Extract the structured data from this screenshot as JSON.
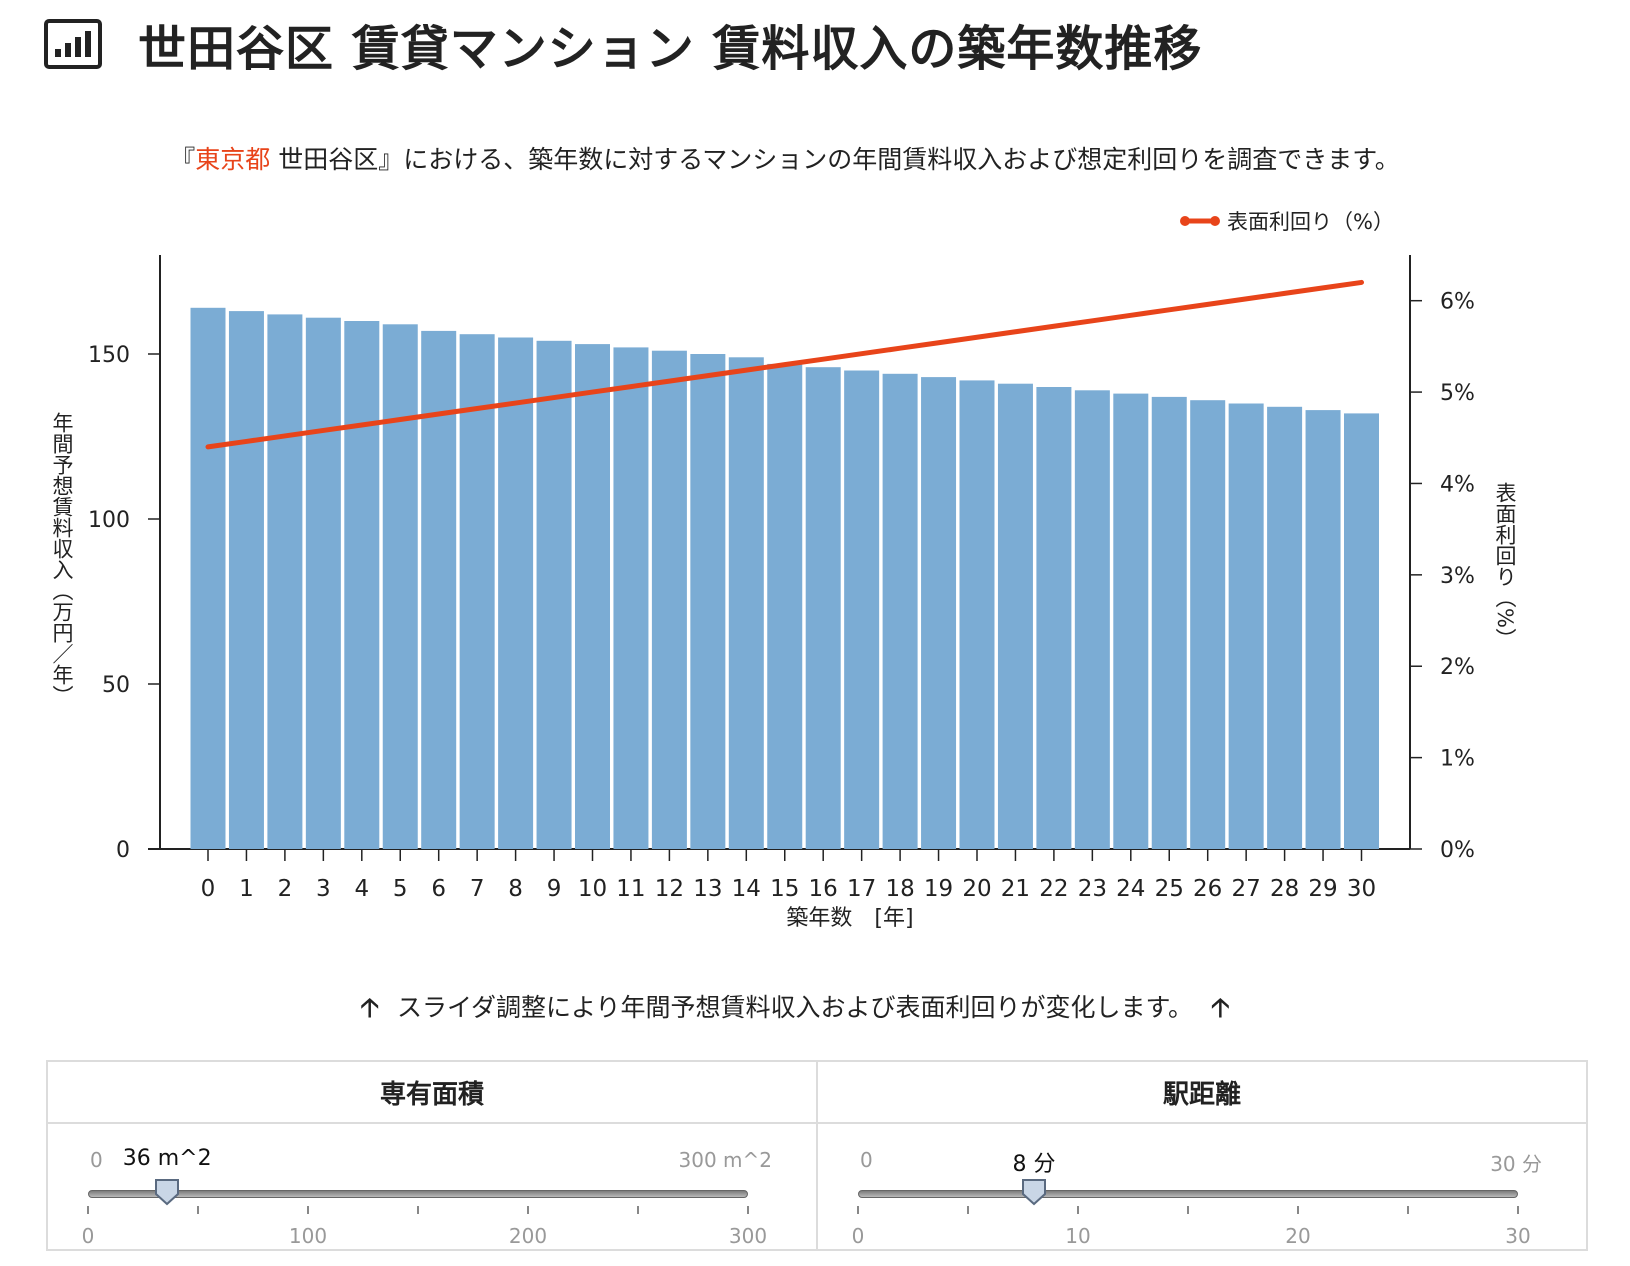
{
  "header": {
    "icon": "bar-chart-icon",
    "title": "世田谷区 賃貸マンション 賃料収入の築年数推移"
  },
  "description": {
    "prefix": "『",
    "highlight": "東京都",
    "rest": " 世田谷区』における、築年数に対するマンションの年間賃料収入および想定利回りを調査できます。",
    "highlight_color": "#e8441a"
  },
  "hint": {
    "text": "スライダ調整により年間予想賃料収入および表面利回りが変化します。",
    "icon": "arrow-up-icon"
  },
  "chart_data": {
    "type": "bar",
    "title": "",
    "xlabel": "築年数　[年]",
    "ylabel": "年間予想賃料収入（万円／年）",
    "y2label": "表面利回り（%）",
    "categories": [
      "0",
      "1",
      "2",
      "3",
      "4",
      "5",
      "6",
      "7",
      "8",
      "9",
      "10",
      "11",
      "12",
      "13",
      "14",
      "15",
      "16",
      "17",
      "18",
      "19",
      "20",
      "21",
      "22",
      "23",
      "24",
      "25",
      "26",
      "27",
      "28",
      "29",
      "30"
    ],
    "ylim": [
      0,
      180
    ],
    "yticks": [
      0,
      50,
      100,
      150
    ],
    "y2lim": [
      0,
      6.5
    ],
    "y2ticks": [
      "0%",
      "1%",
      "2%",
      "3%",
      "4%",
      "5%",
      "6%"
    ],
    "legend_position": "top-right",
    "grid": false,
    "series": [
      {
        "type": "bar",
        "color": "#7bacd4",
        "values": [
          164,
          163,
          162,
          161,
          160,
          159,
          157,
          156,
          155,
          154,
          153,
          152,
          151,
          150,
          149,
          147,
          146,
          145,
          144,
          143,
          142,
          141,
          140,
          139,
          138,
          137,
          136,
          135,
          134,
          133,
          132
        ]
      },
      {
        "name": "表面利回り（%）",
        "type": "line",
        "axis": "right",
        "color": "#e8441a",
        "values": [
          4.4,
          4.46,
          4.52,
          4.58,
          4.64,
          4.7,
          4.76,
          4.82,
          4.88,
          4.94,
          5.0,
          5.06,
          5.12,
          5.18,
          5.24,
          5.3,
          5.36,
          5.42,
          5.48,
          5.54,
          5.6,
          5.66,
          5.72,
          5.78,
          5.84,
          5.9,
          5.96,
          6.02,
          6.08,
          6.14,
          6.2
        ]
      }
    ]
  },
  "sliders": {
    "area": {
      "label": "専有面積",
      "min": "0",
      "max": "300 m^2",
      "value": 36,
      "value_label": "36 m^2",
      "range": [
        0,
        300
      ],
      "scale": [
        "0",
        "100",
        "200",
        "300"
      ]
    },
    "station": {
      "label": "駅距離",
      "min": "0",
      "max": "30 分",
      "value": 8,
      "value_label": "8 分",
      "range": [
        0,
        30
      ],
      "scale": [
        "0",
        "10",
        "20",
        "30"
      ]
    }
  }
}
